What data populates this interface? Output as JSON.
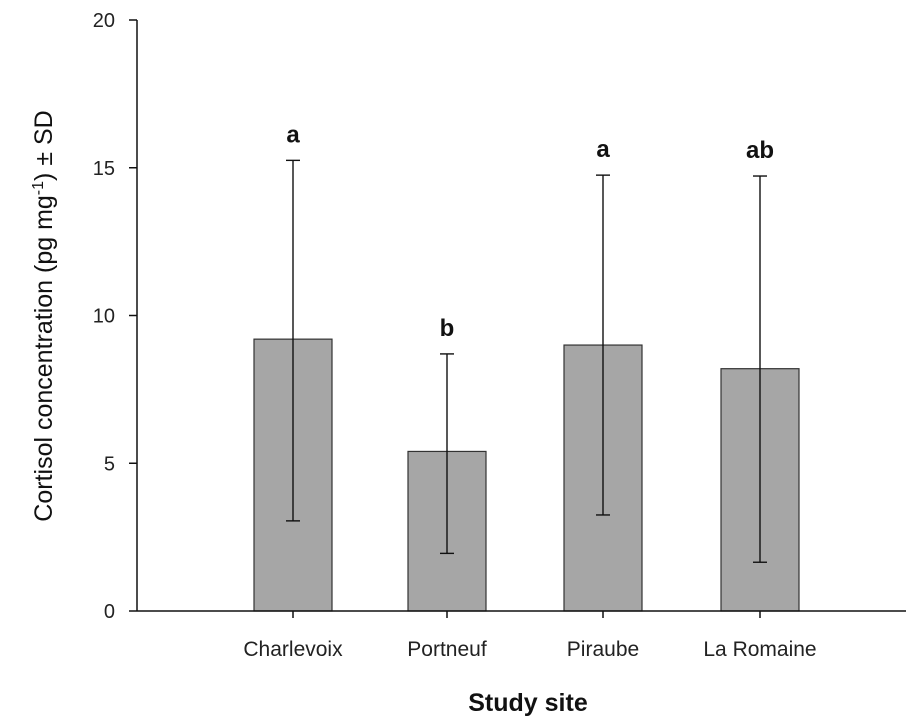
{
  "chart_data": {
    "type": "bar",
    "categories": [
      "Charlevoix",
      "Portneuf",
      "Piraube",
      "La Romaine"
    ],
    "values": [
      9.2,
      5.4,
      9.0,
      8.2
    ],
    "errors_lower": [
      3.05,
      1.95,
      3.25,
      1.65
    ],
    "errors_upper": [
      15.25,
      8.7,
      14.75,
      14.72
    ],
    "significance_letters": [
      "a",
      "b",
      "a",
      "ab"
    ],
    "xlabel": "Study site",
    "ylabel": "Cortisol concentration (pg mg",
    "ylabel_sup": "-1",
    "ylabel_suffix": ") ± SD",
    "ylim": [
      0,
      20
    ],
    "yticks": [
      0,
      5,
      10,
      15,
      20
    ],
    "grid": false,
    "bar_color": "#a6a6a6"
  }
}
